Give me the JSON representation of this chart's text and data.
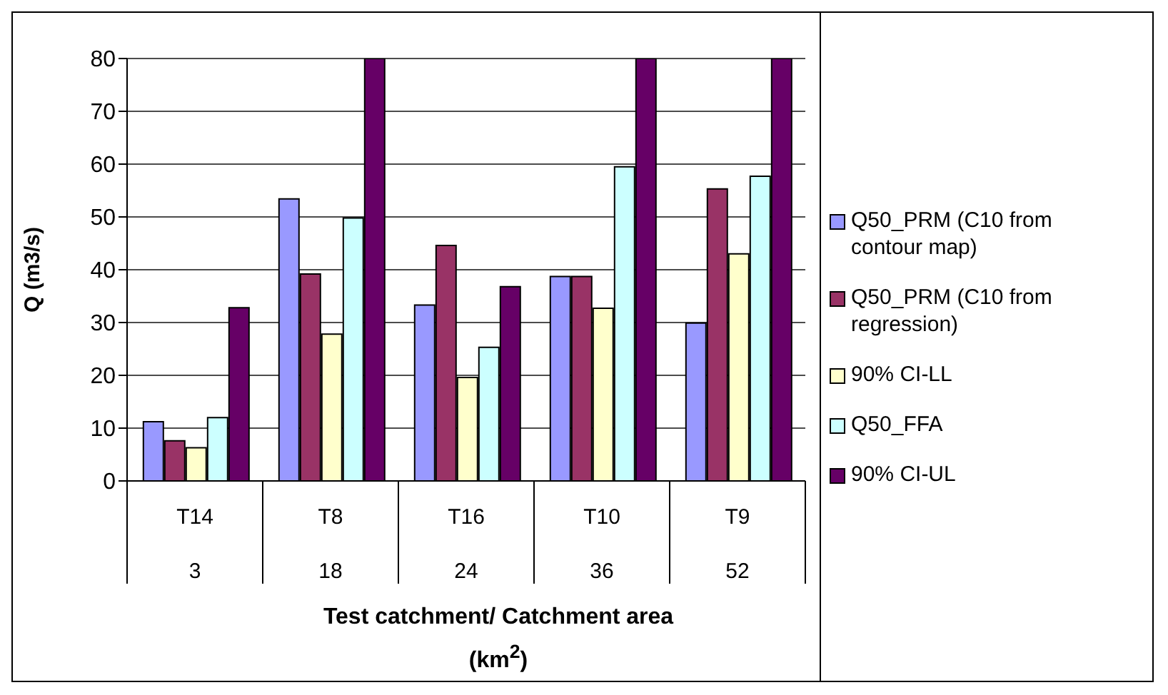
{
  "chart_data": {
    "type": "bar",
    "xlabel": "Test catchment/ Catchment area (km$^{2}$)",
    "ylabel": "Q (m3/s)",
    "categories": [
      "T14\n3",
      "T8\n18",
      "T16\n24",
      "T10\n36",
      "T9\n52"
    ],
    "series": [
      {
        "name": "Q50_PRM (C10 from contour map)",
        "color": "#9999ff",
        "values": [
          11.2,
          53.4,
          33.3,
          38.7,
          29.9
        ]
      },
      {
        "name": "Q50_PRM (C10 from regression)",
        "color": "#993366",
        "values": [
          7.6,
          39.2,
          44.6,
          38.7,
          55.3
        ]
      },
      {
        "name": "90% CI-LL",
        "color": "#ffffcc",
        "values": [
          6.3,
          27.8,
          19.6,
          32.7,
          43
        ]
      },
      {
        "name": "Q50_FFA",
        "color": "#ccffff",
        "values": [
          12,
          49.8,
          25.3,
          59.5,
          57.7
        ]
      },
      {
        "name": "90% CI-UL",
        "color": "#660066",
        "values": [
          32.8,
          80,
          36.8,
          80,
          80
        ]
      }
    ],
    "ylim": [
      0,
      80
    ],
    "yticks": [
      0,
      10,
      20,
      30,
      40,
      50,
      60,
      70,
      80
    ],
    "grid": "y",
    "legend": "right"
  }
}
